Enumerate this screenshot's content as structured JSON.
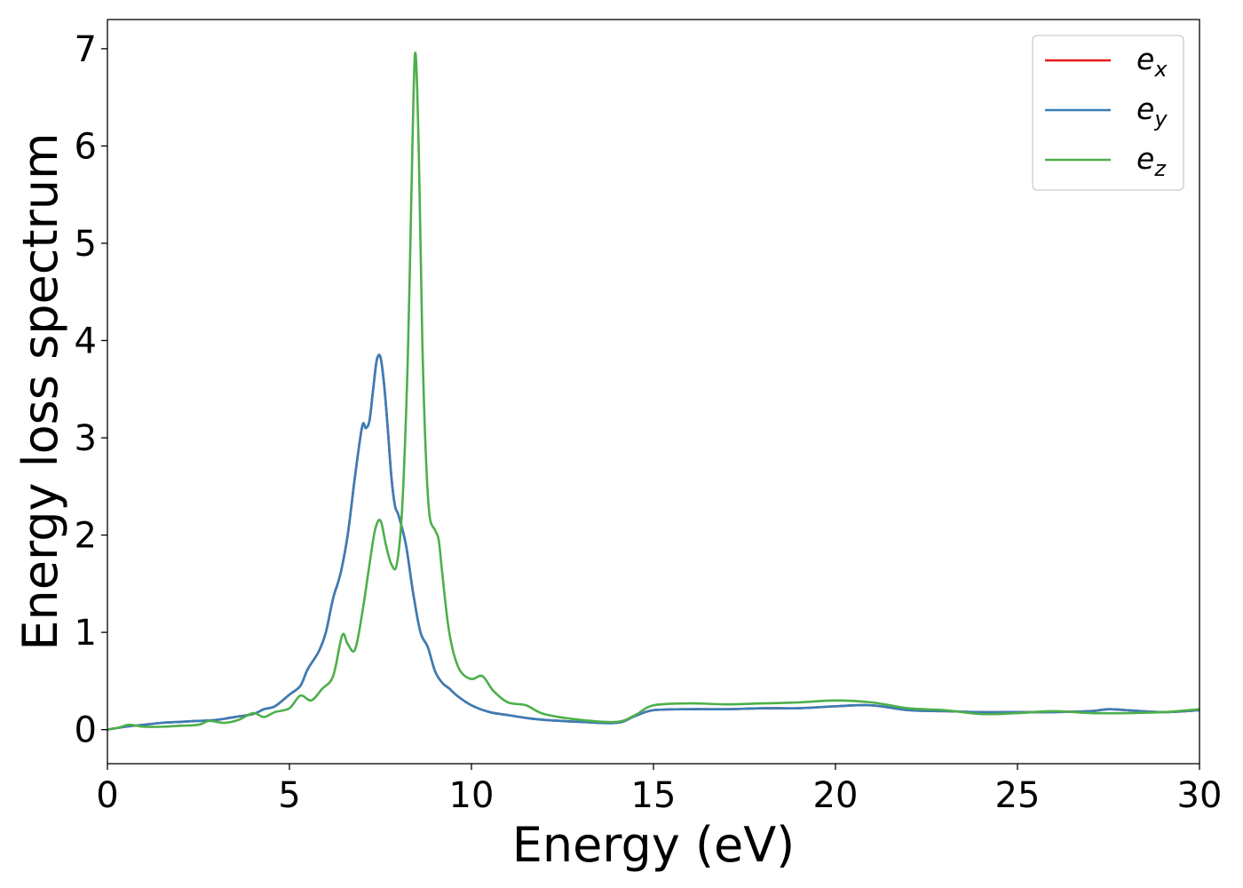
{
  "chart_data": {
    "type": "line",
    "title": "",
    "xlabel": "Energy (eV)",
    "ylabel": "Energy loss spectrum",
    "xlim": [
      0,
      30
    ],
    "ylim": [
      -0.35,
      7.3
    ],
    "xticks": [
      0,
      5,
      10,
      15,
      20,
      25,
      30
    ],
    "yticks": [
      0,
      1,
      2,
      3,
      4,
      5,
      6,
      7
    ],
    "grid": false,
    "legend_position": "top-right",
    "series": [
      {
        "name": "e_x",
        "legend_base": "e",
        "legend_sub": "x",
        "color": "#e41a1c",
        "x": [
          0,
          0.5,
          1,
          1.5,
          2,
          2.5,
          3,
          3.5,
          4,
          4.3,
          4.6,
          5,
          5.3,
          5.5,
          5.8,
          6,
          6.2,
          6.4,
          6.6,
          6.8,
          7,
          7.1,
          7.2,
          7.3,
          7.4,
          7.5,
          7.6,
          7.7,
          7.8,
          7.9,
          8,
          8.2,
          8.4,
          8.6,
          8.8,
          9,
          9.2,
          9.4,
          9.6,
          10,
          10.5,
          11,
          11.5,
          12,
          13,
          14,
          14.5,
          15,
          16,
          17,
          18,
          19,
          20,
          21,
          22,
          23,
          24,
          25,
          26,
          27,
          27.5,
          28,
          29,
          30
        ],
        "y": [
          0,
          0.03,
          0.05,
          0.07,
          0.08,
          0.09,
          0.1,
          0.13,
          0.16,
          0.21,
          0.24,
          0.36,
          0.45,
          0.62,
          0.8,
          1.0,
          1.35,
          1.6,
          2.0,
          2.6,
          3.12,
          3.1,
          3.18,
          3.5,
          3.8,
          3.83,
          3.55,
          3.1,
          2.6,
          2.3,
          2.2,
          1.9,
          1.4,
          1.0,
          0.85,
          0.6,
          0.48,
          0.42,
          0.35,
          0.25,
          0.18,
          0.15,
          0.12,
          0.1,
          0.08,
          0.07,
          0.14,
          0.2,
          0.21,
          0.21,
          0.22,
          0.22,
          0.24,
          0.25,
          0.2,
          0.19,
          0.18,
          0.18,
          0.18,
          0.19,
          0.21,
          0.2,
          0.18,
          0.2
        ]
      },
      {
        "name": "e_y",
        "legend_base": "e",
        "legend_sub": "y",
        "color": "#377eb8",
        "x": [
          0,
          0.5,
          1,
          1.5,
          2,
          2.5,
          3,
          3.5,
          4,
          4.3,
          4.6,
          5,
          5.3,
          5.5,
          5.8,
          6,
          6.2,
          6.4,
          6.6,
          6.8,
          7,
          7.1,
          7.2,
          7.3,
          7.4,
          7.5,
          7.6,
          7.7,
          7.8,
          7.9,
          8,
          8.2,
          8.4,
          8.6,
          8.8,
          9,
          9.2,
          9.4,
          9.6,
          10,
          10.5,
          11,
          11.5,
          12,
          13,
          14,
          14.5,
          15,
          16,
          17,
          18,
          19,
          20,
          21,
          22,
          23,
          24,
          25,
          26,
          27,
          27.5,
          28,
          29,
          30
        ],
        "y": [
          0,
          0.03,
          0.05,
          0.07,
          0.08,
          0.09,
          0.1,
          0.13,
          0.16,
          0.21,
          0.24,
          0.36,
          0.45,
          0.62,
          0.8,
          1.0,
          1.35,
          1.6,
          2.0,
          2.6,
          3.12,
          3.1,
          3.18,
          3.5,
          3.8,
          3.83,
          3.55,
          3.1,
          2.6,
          2.3,
          2.2,
          1.9,
          1.4,
          1.0,
          0.85,
          0.6,
          0.48,
          0.42,
          0.35,
          0.25,
          0.18,
          0.15,
          0.12,
          0.1,
          0.08,
          0.07,
          0.14,
          0.2,
          0.21,
          0.21,
          0.22,
          0.22,
          0.24,
          0.25,
          0.2,
          0.19,
          0.18,
          0.18,
          0.18,
          0.19,
          0.21,
          0.2,
          0.18,
          0.2
        ]
      },
      {
        "name": "e_z",
        "legend_base": "e",
        "legend_sub": "z",
        "color": "#4daf4a",
        "x": [
          0,
          0.3,
          0.6,
          1,
          1.5,
          2,
          2.5,
          2.8,
          3.2,
          3.6,
          4,
          4.3,
          4.6,
          5,
          5.3,
          5.6,
          5.9,
          6.2,
          6.45,
          6.6,
          6.8,
          7,
          7.2,
          7.35,
          7.5,
          7.65,
          7.8,
          7.95,
          8.1,
          8.25,
          8.35,
          8.45,
          8.55,
          8.65,
          8.75,
          8.85,
          9,
          9.1,
          9.2,
          9.35,
          9.5,
          9.7,
          10,
          10.3,
          10.6,
          11,
          11.5,
          12,
          13,
          14,
          14.5,
          15,
          16,
          17,
          18,
          19,
          20,
          21,
          22,
          23,
          24,
          25,
          26,
          27,
          28,
          29,
          30
        ],
        "y": [
          0,
          0.02,
          0.05,
          0.03,
          0.03,
          0.04,
          0.05,
          0.09,
          0.07,
          0.1,
          0.17,
          0.13,
          0.18,
          0.22,
          0.35,
          0.3,
          0.42,
          0.55,
          0.97,
          0.88,
          0.82,
          1.2,
          1.7,
          2.05,
          2.15,
          1.9,
          1.7,
          1.7,
          2.3,
          3.8,
          5.5,
          6.95,
          6.0,
          4.0,
          2.8,
          2.2,
          2.05,
          1.95,
          1.6,
          1.1,
          0.8,
          0.6,
          0.52,
          0.55,
          0.4,
          0.28,
          0.25,
          0.16,
          0.1,
          0.08,
          0.15,
          0.25,
          0.27,
          0.26,
          0.27,
          0.28,
          0.3,
          0.28,
          0.22,
          0.2,
          0.16,
          0.17,
          0.19,
          0.17,
          0.17,
          0.18,
          0.21
        ]
      }
    ]
  }
}
